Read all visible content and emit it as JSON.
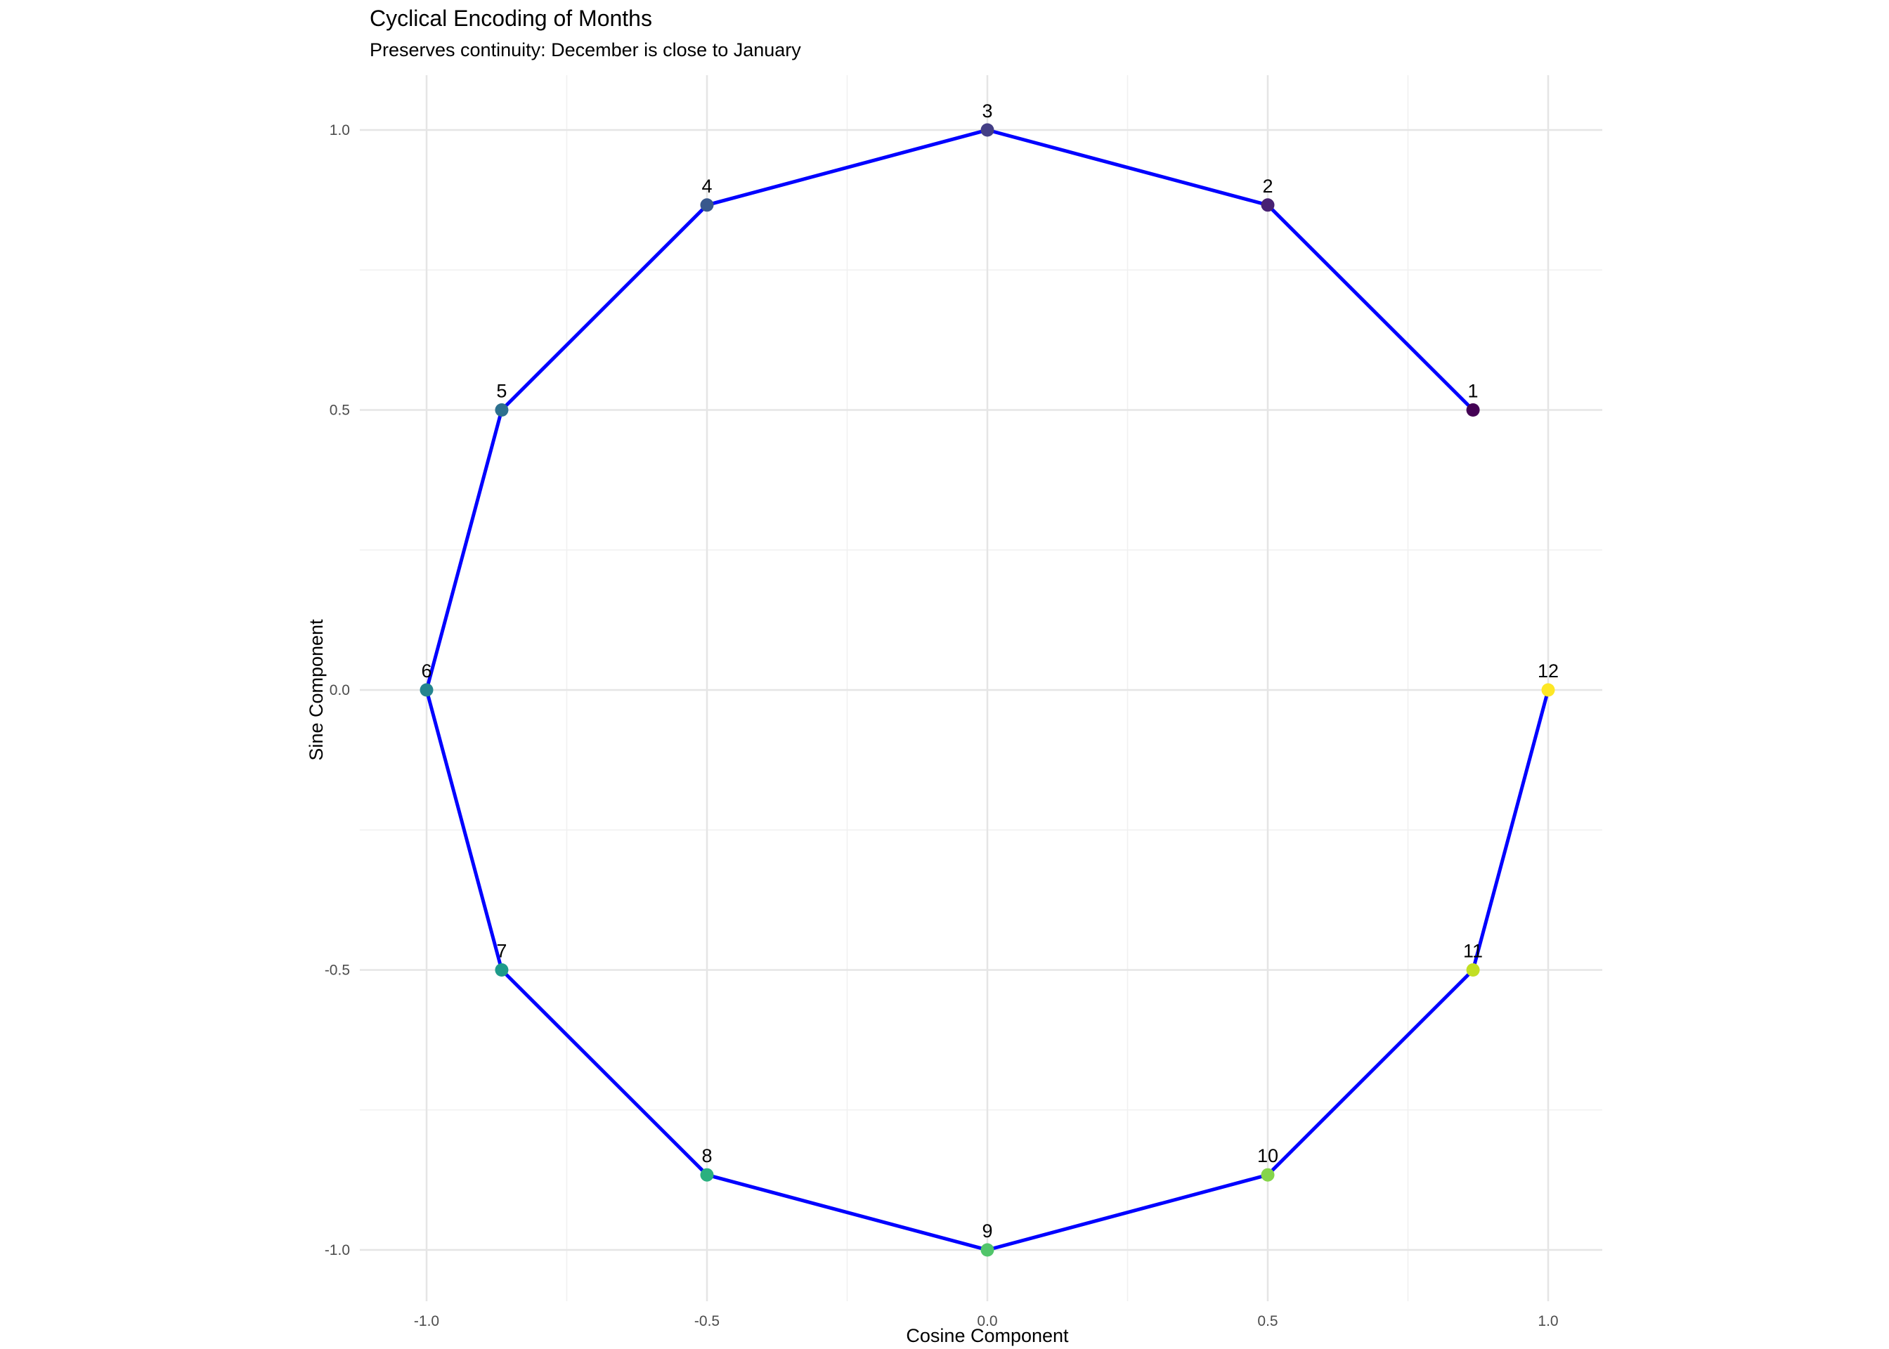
{
  "chart_data": {
    "type": "scatter",
    "title": "Cyclical Encoding of Months",
    "subtitle": "Preserves continuity: December is close to January",
    "xlabel": "Cosine Component",
    "ylabel": "Sine Component",
    "xlim": [
      -1.1,
      1.1
    ],
    "ylim": [
      -1.1,
      1.1
    ],
    "x_ticks": [
      -1.0,
      -0.5,
      0.0,
      0.5,
      1.0
    ],
    "x_tick_labels": [
      "-1.0",
      "-0.5",
      "0.0",
      "0.5",
      "1.0"
    ],
    "y_ticks": [
      -1.0,
      -0.5,
      0.0,
      0.5,
      1.0
    ],
    "y_tick_labels": [
      "-1.0",
      "-0.5",
      "0.0",
      "0.5",
      "1.0"
    ],
    "grid": true,
    "line_color": "#0000ff",
    "points": [
      {
        "label": "1",
        "x": 0.866,
        "y": 0.5,
        "color": "#440154"
      },
      {
        "label": "2",
        "x": 0.5,
        "y": 0.866,
        "color": "#482173"
      },
      {
        "label": "3",
        "x": 0.0,
        "y": 1.0,
        "color": "#433e85"
      },
      {
        "label": "4",
        "x": -0.5,
        "y": 0.866,
        "color": "#38588c"
      },
      {
        "label": "5",
        "x": -0.866,
        "y": 0.5,
        "color": "#2d708e"
      },
      {
        "label": "6",
        "x": -1.0,
        "y": 0.0,
        "color": "#25858e"
      },
      {
        "label": "7",
        "x": -0.866,
        "y": -0.5,
        "color": "#1e9b8a"
      },
      {
        "label": "8",
        "x": -0.5,
        "y": -0.866,
        "color": "#2ab07f"
      },
      {
        "label": "9",
        "x": 0.0,
        "y": -1.0,
        "color": "#51c56a"
      },
      {
        "label": "10",
        "x": 0.5,
        "y": -0.866,
        "color": "#85d54a"
      },
      {
        "label": "11",
        "x": 0.866,
        "y": -0.5,
        "color": "#c2df23"
      },
      {
        "label": "12",
        "x": 1.0,
        "y": 0.0,
        "color": "#fde725"
      }
    ]
  }
}
